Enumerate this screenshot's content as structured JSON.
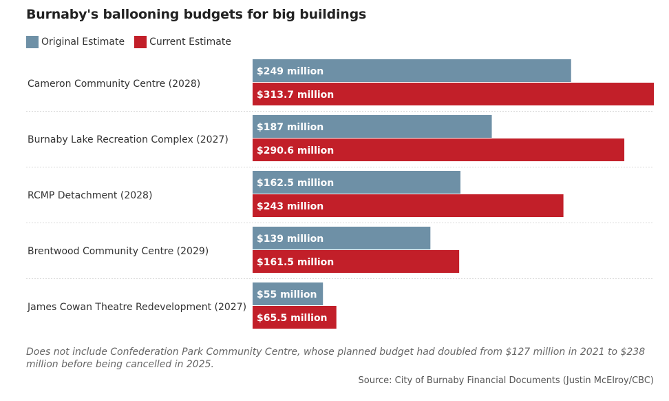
{
  "header": {
    "title": "Burnaby's ballooning budgets for big buildings"
  },
  "legend": [
    {
      "label": "Original Estimate",
      "color": "#6e90a6"
    },
    {
      "label": "Current Estimate",
      "color": "#c21f29"
    }
  ],
  "chart_data": {
    "type": "bar",
    "orientation": "horizontal",
    "title": "Burnaby's ballooning budgets for big buildings",
    "categories": [
      "Cameron Community Centre (2028)",
      "Burnaby Lake Recreation Complex (2027)",
      "RCMP Detachment (2028)",
      "Brentwood Community Centre (2029)",
      "James Cowan Theatre Redevelopment (2027)"
    ],
    "series": [
      {
        "name": "Original Estimate",
        "color": "#6e90a6",
        "values": [
          249,
          187,
          162.5,
          139,
          55
        ],
        "labels": [
          "$249 million",
          "$187 million",
          "$162.5 million",
          "$139 million",
          "$55 million"
        ]
      },
      {
        "name": "Current Estimate",
        "color": "#c21f29",
        "values": [
          313.7,
          290.6,
          243,
          161.5,
          65.5
        ],
        "labels": [
          "$313.7 million",
          "$290.6 million",
          "$243 million",
          "$161.5 million",
          "$65.5 million"
        ]
      }
    ],
    "unit": "million",
    "xlim": [
      0,
      313.7
    ],
    "grid": false,
    "legend_position": "top-left"
  },
  "footer": {
    "note": "Does not include Confederation Park Community Centre, whose planned budget had doubled from $127 million in 2021 to $238 million before being cancelled in 2025.",
    "source": "Source: City of Burnaby Financial Documents (Justin McElroy/CBC)"
  }
}
